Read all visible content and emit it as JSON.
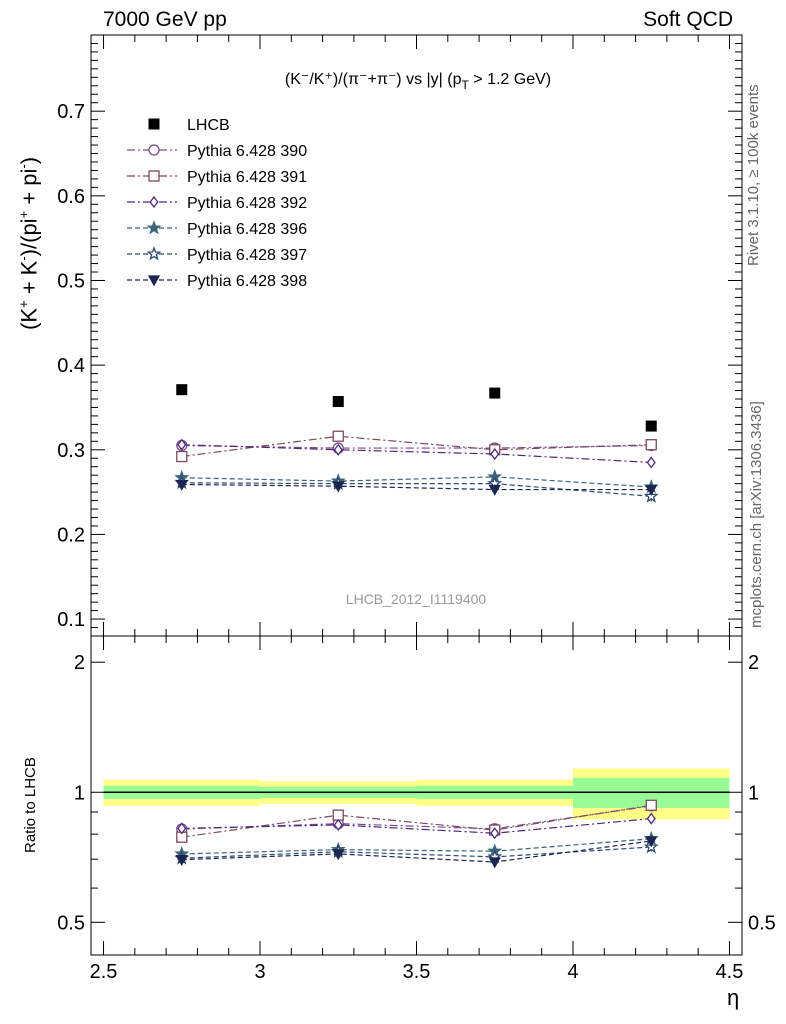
{
  "header": {
    "left": "7000 GeV pp",
    "right": "Soft QCD"
  },
  "side_labels": {
    "rivet": "Rivet 3.1.10, ≥ 100k events",
    "mcplots": "mcplots.cern.ch [arXiv:1306.3436]"
  },
  "colors": {
    "data": "#000000",
    "band_inner": "#98fb98",
    "band_outer": "#ffff88"
  },
  "chart_data": {
    "type": "scatter",
    "title": "(K⁻/K⁺)/(π⁻+π⁻) vs |y| (p_T > 1.2 GeV)",
    "title_parts": {
      "main": "(K⁻/K⁺)/(π⁻+π⁻) vs |y| (p",
      "sub": "T",
      "tail": " > 1.2 GeV)"
    },
    "ylabel": "(K⁺ + K⁻)/(pi⁺ + pi⁻)",
    "xlabel": "η",
    "ratio_ylabel": "Ratio to LHCB",
    "analysis_label": "LHCB_2012_I1119400",
    "x": [
      2.75,
      3.25,
      3.75,
      4.25
    ],
    "x_edges": [
      2.5,
      3.0,
      3.5,
      4.0,
      4.5
    ],
    "xlim": [
      2.46,
      4.54
    ],
    "xticks": [
      "2.5",
      "3",
      "3.5",
      "4",
      "4.5"
    ],
    "ylim": [
      0.08,
      0.79
    ],
    "yticks": [
      "0.1",
      "0.2",
      "0.3",
      "0.4",
      "0.5",
      "0.6",
      "0.7"
    ],
    "ratio_ylim": [
      0.42,
      2.3
    ],
    "ratio_ticks": [
      "0.5",
      "1",
      "2"
    ],
    "ratio_log": true,
    "data": {
      "name": "LHCB",
      "values": [
        0.371,
        0.357,
        0.367,
        0.328
      ]
    },
    "ratio_band": {
      "inner": [
        0.035,
        0.03,
        0.035,
        0.08
      ],
      "outer": [
        0.07,
        0.06,
        0.07,
        0.135
      ]
    },
    "series": [
      {
        "name": "Pythia 6.428 390",
        "marker": "circle-open",
        "dash": "dashdot",
        "color": "#7b4b8a",
        "values": [
          0.305,
          0.302,
          0.302,
          0.305
        ],
        "err": [
          0.004,
          0.004,
          0.005,
          0.006
        ]
      },
      {
        "name": "Pythia 6.428 391",
        "marker": "square-open",
        "dash": "dashdot",
        "color": "#7a4a5e",
        "values": [
          0.292,
          0.316,
          0.3,
          0.306
        ],
        "err": [
          0.004,
          0.004,
          0.005,
          0.006
        ]
      },
      {
        "name": "Pythia 6.428 392",
        "marker": "diamond-open",
        "dash": "dashdot",
        "color": "#4b2a7a",
        "values": [
          0.306,
          0.3,
          0.295,
          0.285
        ],
        "err": [
          0.004,
          0.004,
          0.005,
          0.006
        ]
      },
      {
        "name": "Pythia 6.428 396",
        "marker": "star-filled",
        "dash": "dashed",
        "color": "#3d6478",
        "values": [
          0.267,
          0.263,
          0.268,
          0.256
        ],
        "err": [
          0.004,
          0.004,
          0.006,
          0.006
        ]
      },
      {
        "name": "Pythia 6.428 397",
        "marker": "star-open",
        "dash": "dashed",
        "color": "#2e4a6e",
        "values": [
          0.261,
          0.26,
          0.26,
          0.245
        ],
        "err": [
          0.004,
          0.004,
          0.006,
          0.006
        ]
      },
      {
        "name": "Pythia 6.428 398",
        "marker": "triangle-down-filled",
        "dash": "dashed",
        "color": "#1a2650",
        "values": [
          0.259,
          0.257,
          0.253,
          0.253
        ],
        "err": [
          0.004,
          0.004,
          0.006,
          0.006
        ]
      }
    ]
  }
}
